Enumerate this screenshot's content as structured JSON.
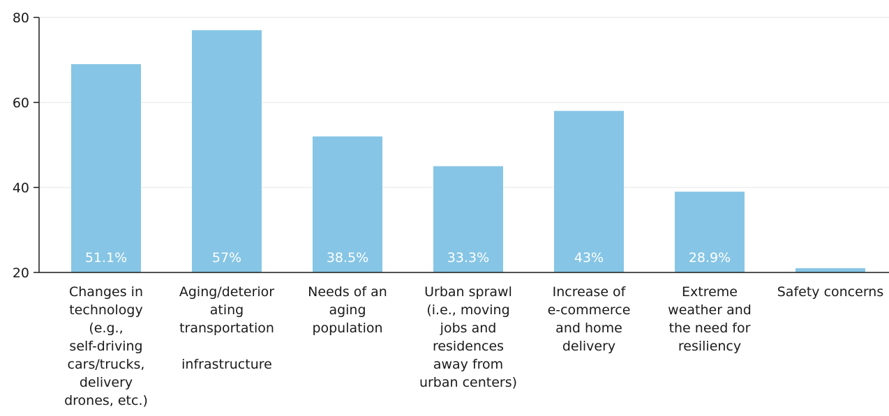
{
  "chart_data": {
    "type": "bar",
    "title": "",
    "xlabel": "",
    "ylabel": "",
    "ylim": [
      20,
      80
    ],
    "yticks": [
      20,
      40,
      60,
      80
    ],
    "grid": true,
    "bar_color": "#86c5e5",
    "categories": [
      "Changes in\ntechnology\n(e.g.,\nself-driving\ncars/trucks,\ndelivery\ndrones, etc.)",
      "Aging/deterior\nating\ntransportation\n\ninfrastructure",
      "Needs of an\naging\npopulation",
      "Urban sprawl\n(i.e., moving\njobs and\nresidences\naway from\nurban centers)",
      "Increase of\ne-commerce\nand home\ndelivery",
      "Extreme\nweather and\nthe need for\nresiliency",
      "Safety concerns"
    ],
    "values": [
      69,
      77,
      52,
      45,
      58,
      39,
      21
    ],
    "data_labels": [
      "51.1%",
      "57%",
      "38.5%",
      "33.3%",
      "43%",
      "28.9%",
      ""
    ]
  }
}
